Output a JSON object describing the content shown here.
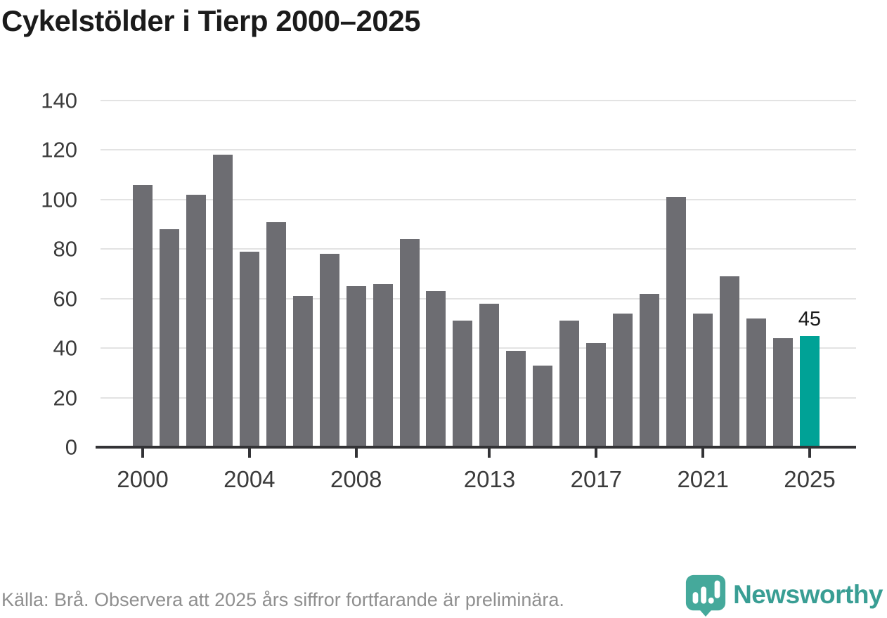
{
  "chart": {
    "title": "Cykelstölder i Tierp 2000–2025"
  },
  "chart_data": {
    "type": "bar",
    "title": "Cykelstölder i Tierp 2000–2025",
    "categories": [
      "2000",
      "2001",
      "2002",
      "2003",
      "2004",
      "2005",
      "2006",
      "2007",
      "2008",
      "2009",
      "2010",
      "2011",
      "2012",
      "2013",
      "2014",
      "2015",
      "2016",
      "2017",
      "2018",
      "2019",
      "2020",
      "2021",
      "2022",
      "2023",
      "2024",
      "2025"
    ],
    "values": [
      106,
      88,
      102,
      118,
      79,
      91,
      61,
      78,
      65,
      66,
      84,
      63,
      51,
      58,
      39,
      33,
      51,
      42,
      54,
      62,
      101,
      54,
      69,
      52,
      44,
      45
    ],
    "xlabel": "",
    "ylabel": "",
    "ylim": [
      0,
      140
    ],
    "yticks": [
      0,
      20,
      40,
      60,
      80,
      100,
      120,
      140
    ],
    "xtick_labels": [
      "2000",
      "2004",
      "2008",
      "2013",
      "2017",
      "2021",
      "2025"
    ],
    "xtick_indices": [
      0,
      4,
      8,
      13,
      17,
      21,
      25
    ],
    "grid": "horizontal",
    "legend": "none",
    "bar_color": "#6d6d72",
    "highlight_index": 25,
    "highlight_color": "#00a296",
    "highlight_value_label": "45"
  },
  "footer": {
    "source": "Källa: Brå. Observera att 2025 års siffror fortfarande är preliminära.",
    "logo_text": "Newsworthy",
    "logo_color": "#399e94",
    "logo_icon_color": "#45a99b"
  }
}
